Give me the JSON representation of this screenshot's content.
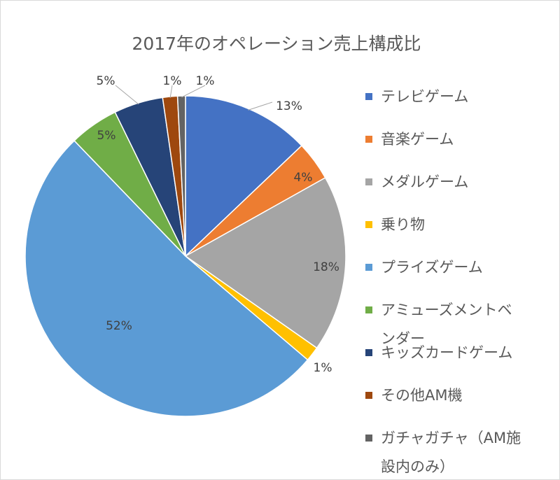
{
  "chart_data": {
    "type": "pie",
    "title": "2017年のオペレーション売上構成比",
    "categories": [
      "テレビゲーム",
      "音楽ゲーム",
      "メダルゲーム",
      "乗り物",
      "プライズゲーム",
      "アミューズメントベンダー",
      "キッズカードゲーム",
      "その他AM機",
      "ガチャガチャ（AM施設内のみ）"
    ],
    "values": [
      13,
      4,
      18,
      1.5,
      52,
      5,
      5,
      1.5,
      0.8
    ],
    "value_labels": [
      "13%",
      "4%",
      "18%",
      "1%",
      "52%",
      "5%",
      "5%",
      "1%",
      "1%"
    ],
    "colors": [
      "#4472C4",
      "#ED7D31",
      "#A5A5A5",
      "#FFC000",
      "#5B9BD5",
      "#70AD47",
      "#264478",
      "#9E480E",
      "#636363"
    ],
    "legend_position": "right",
    "legend_lines": [
      [
        "テレビゲーム"
      ],
      [
        "音楽ゲーム"
      ],
      [
        "メダルゲーム"
      ],
      [
        "乗り物"
      ],
      [
        "プライズゲーム"
      ],
      [
        "アミューズメントベ",
        "ンダー"
      ],
      [
        "キッズカードゲーム"
      ],
      [
        "その他AM機"
      ],
      [
        "ガチャガチャ（AM施",
        "設内のみ）"
      ]
    ]
  }
}
